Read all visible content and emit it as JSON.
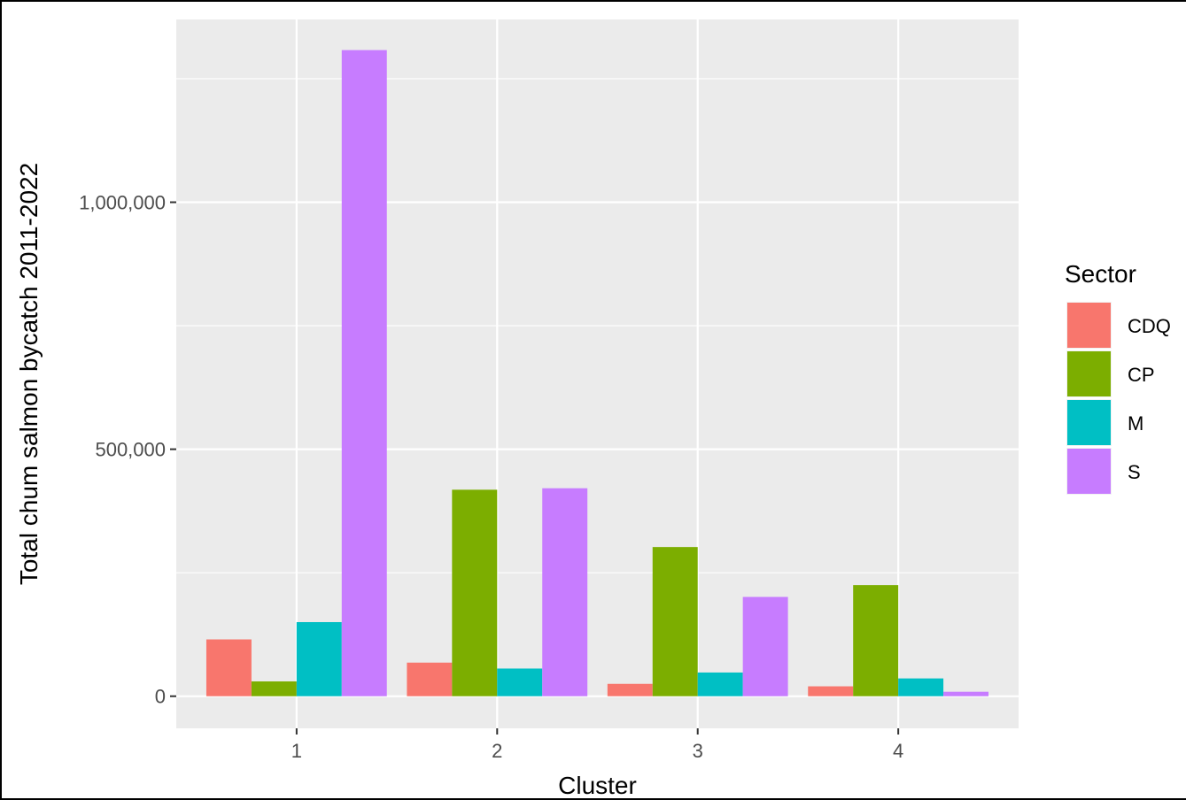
{
  "chart_data": {
    "type": "bar",
    "categories": [
      "1",
      "2",
      "3",
      "4"
    ],
    "series": [
      {
        "name": "CDQ",
        "color": "#F8766D",
        "values": [
          115000,
          68000,
          25000,
          20000
        ]
      },
      {
        "name": "CP",
        "color": "#7CAE00",
        "values": [
          30000,
          418000,
          302000,
          225000
        ]
      },
      {
        "name": "M",
        "color": "#00BFC4",
        "values": [
          150000,
          56000,
          48000,
          36000
        ]
      },
      {
        "name": "S",
        "color": "#C77CFF",
        "values": [
          1308000,
          421000,
          201000,
          9000
        ]
      }
    ],
    "xlabel": "Cluster",
    "ylabel": "Total chum salmon bycatch 2011-2022",
    "yticks": [
      0,
      500000,
      1000000
    ],
    "ytick_labels": [
      "0",
      "500,000",
      "1,000,000"
    ],
    "ylim": [
      -65000,
      1370000
    ],
    "legend": {
      "title": "Sector",
      "position": "right"
    },
    "grid": true,
    "panel_color": "#EBEBEB"
  }
}
